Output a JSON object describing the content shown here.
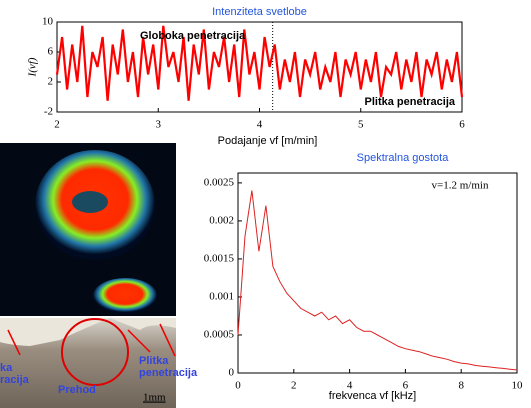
{
  "chart_data": [
    {
      "type": "line",
      "title": "Intenziteta svetlobe",
      "xlabel": "Podajanje vf [m/min]",
      "ylabel": "I(vf)",
      "annotations": [
        "Globoka penetracija",
        "Plitka penetracija"
      ],
      "divider_x": 4.13,
      "xlim": [
        2,
        6
      ],
      "xticks": [
        2,
        3,
        4,
        5,
        6
      ],
      "ylim": [
        -2,
        10
      ],
      "yticks": [
        -2,
        2,
        6,
        10
      ],
      "series": [
        {
          "color": "#ff0000",
          "x": [
            2,
            2.05,
            2.1,
            2.15,
            2.2,
            2.25,
            2.3,
            2.35,
            2.4,
            2.45,
            2.5,
            2.55,
            2.6,
            2.65,
            2.7,
            2.75,
            2.8,
            2.85,
            2.9,
            2.95,
            3,
            3.05,
            3.1,
            3.15,
            3.2,
            3.25,
            3.3,
            3.35,
            3.4,
            3.45,
            3.5,
            3.55,
            3.6,
            3.65,
            3.7,
            3.75,
            3.8,
            3.85,
            3.9,
            3.95,
            4,
            4.05,
            4.1,
            4.15,
            4.2,
            4.25,
            4.3,
            4.35,
            4.4,
            4.45,
            4.5,
            4.55,
            4.6,
            4.65,
            4.7,
            4.75,
            4.8,
            4.85,
            4.9,
            4.95,
            5,
            5.05,
            5.1,
            5.15,
            5.2,
            5.25,
            5.3,
            5.35,
            5.4,
            5.45,
            5.5,
            5.55,
            5.6,
            5.65,
            5.7,
            5.75,
            5.8,
            5.85,
            5.9,
            5.95,
            6
          ],
          "values": [
            3,
            8,
            1,
            7,
            2,
            9.5,
            0,
            6,
            4,
            8,
            -0.5,
            7,
            3,
            9,
            2,
            6,
            0,
            8,
            3,
            7,
            1,
            9.5,
            4,
            6,
            2,
            8,
            -0.5,
            7,
            3,
            9,
            1,
            6,
            4,
            8,
            2,
            7,
            0,
            9,
            3,
            6,
            1,
            8,
            4,
            7,
            1,
            5,
            2,
            6,
            0,
            5,
            3,
            6,
            1,
            4,
            2,
            6,
            0,
            5,
            3,
            6,
            1,
            5,
            2,
            6,
            0,
            4,
            3,
            6,
            1,
            5,
            2,
            6,
            0,
            5,
            3,
            6,
            1,
            5,
            2,
            6,
            0
          ]
        }
      ]
    },
    {
      "type": "line",
      "title": "Spektralna gostota",
      "xlabel": "frekvenca vf [kHz]",
      "annotations": [
        "v=1.2 m/min"
      ],
      "xlim": [
        0,
        10
      ],
      "xticks": [
        0,
        2,
        4,
        6,
        8,
        10
      ],
      "ylim": [
        0,
        0.00263
      ],
      "yticks": [
        0,
        0.0005,
        0.001,
        0.0015,
        0.002,
        0.0025
      ],
      "series": [
        {
          "color": "#dd2222",
          "x": [
            0,
            0.25,
            0.5,
            0.75,
            1,
            1.25,
            1.5,
            1.75,
            2,
            2.25,
            2.5,
            2.75,
            3,
            3.25,
            3.5,
            3.75,
            4,
            4.25,
            4.5,
            4.75,
            5,
            5.25,
            5.5,
            5.75,
            6,
            6.25,
            6.5,
            6.75,
            7,
            7.25,
            7.5,
            7.75,
            8,
            8.25,
            8.5,
            8.75,
            9,
            9.25,
            9.5,
            9.75,
            10
          ],
          "values": [
            0.0005,
            0.0018,
            0.0024,
            0.0016,
            0.0022,
            0.0014,
            0.0012,
            0.00105,
            0.00095,
            0.00085,
            0.0008,
            0.00075,
            0.0008,
            0.0007,
            0.00075,
            0.00065,
            0.0007,
            0.0006,
            0.00055,
            0.00055,
            0.0005,
            0.00045,
            0.0004,
            0.00035,
            0.00032,
            0.0003,
            0.00028,
            0.00025,
            0.00022,
            0.0002,
            0.00018,
            0.00015,
            0.00013,
            0.00012,
            0.0001,
            9e-05,
            8e-05,
            7e-05,
            6e-05,
            5e-05,
            4e-05
          ]
        }
      ]
    }
  ],
  "micrograph": {
    "left_label": [
      "ka",
      "racija"
    ],
    "center_label": "Prehod",
    "right_label": [
      "Plitka",
      "penetracija"
    ],
    "scale": "1mm"
  }
}
